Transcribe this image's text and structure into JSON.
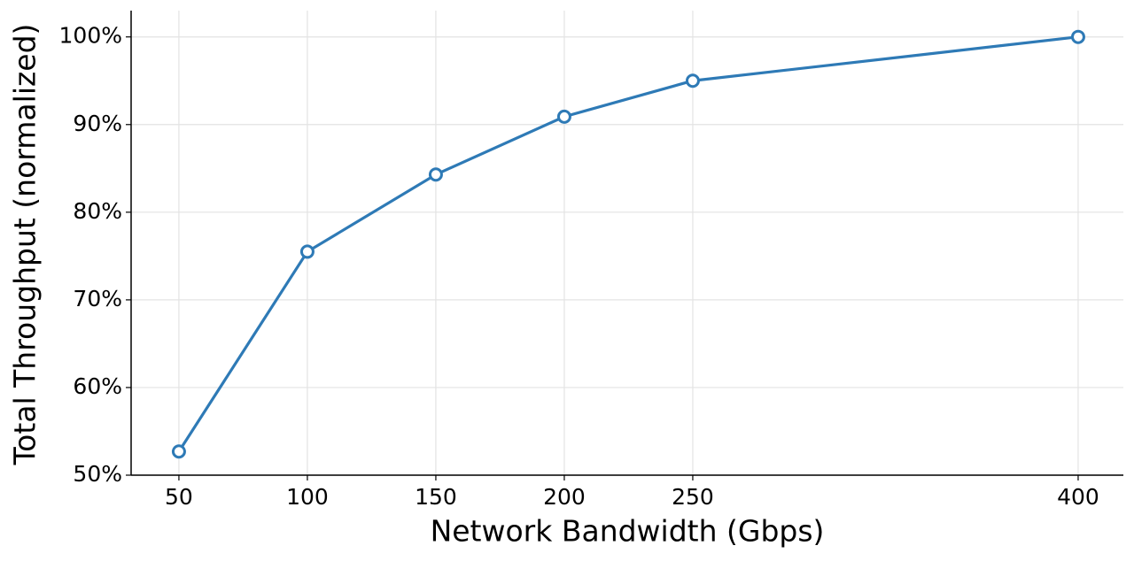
{
  "chart_data": {
    "type": "line",
    "x_label": "Network Bandwidth (Gbps)",
    "y_label": "Total Throughput (normalized)",
    "x": [
      50,
      100,
      150,
      200,
      250,
      400
    ],
    "values": [
      52.7,
      75.5,
      84.3,
      90.9,
      95.0,
      100
    ],
    "color": "#2e7ab6",
    "xlim": [
      31.4,
      417.6
    ],
    "ylim": [
      50,
      103
    ],
    "xticks": [
      50,
      100,
      150,
      200,
      250,
      400
    ],
    "yticks": [
      {
        "value": 50,
        "label": "50%"
      },
      {
        "value": 60,
        "label": "60%"
      },
      {
        "value": 70,
        "label": "70%"
      },
      {
        "value": 80,
        "label": "80%"
      },
      {
        "value": 90,
        "label": "90%"
      },
      {
        "value": 100,
        "label": "100%"
      }
    ],
    "grid": true
  }
}
